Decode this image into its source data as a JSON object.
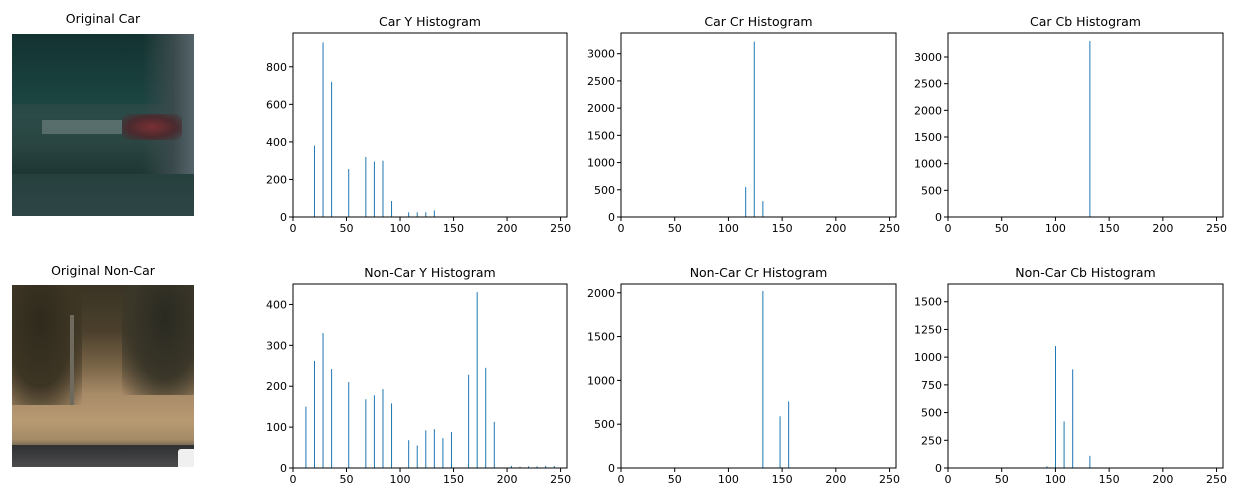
{
  "chart_data": [
    {
      "type": "bar",
      "title": "Car Y Histogram",
      "xlabel": "",
      "ylabel": "",
      "xlim": [
        0,
        256
      ],
      "ylim": [
        0,
        980
      ],
      "xticks": [
        0,
        50,
        100,
        150,
        200,
        250
      ],
      "yticks": [
        0,
        200,
        400,
        600,
        800
      ],
      "bar_width": 0.8,
      "x": [
        20,
        28,
        36,
        52,
        68,
        76,
        84,
        92,
        108,
        116,
        124,
        132
      ],
      "values": [
        380,
        930,
        720,
        255,
        320,
        295,
        300,
        85,
        25,
        25,
        25,
        35
      ]
    },
    {
      "type": "bar",
      "title": "Car Cr Histogram",
      "xlabel": "",
      "ylabel": "",
      "xlim": [
        0,
        256
      ],
      "ylim": [
        0,
        3380
      ],
      "xticks": [
        0,
        50,
        100,
        150,
        200,
        250
      ],
      "yticks": [
        0,
        500,
        1000,
        1500,
        2000,
        2500,
        3000
      ],
      "bar_width": 0.8,
      "x": [
        116,
        124,
        132
      ],
      "values": [
        550,
        3220,
        290
      ]
    },
    {
      "type": "bar",
      "title": "Car Cb Histogram",
      "xlabel": "",
      "ylabel": "",
      "xlim": [
        0,
        256
      ],
      "ylim": [
        0,
        3450
      ],
      "xticks": [
        0,
        50,
        100,
        150,
        200,
        250
      ],
      "yticks": [
        0,
        500,
        1000,
        1500,
        2000,
        2500,
        3000
      ],
      "bar_width": 0.8,
      "x": [
        132
      ],
      "values": [
        3300
      ]
    },
    {
      "type": "bar",
      "title": "Non-Car Y Histogram",
      "xlabel": "",
      "ylabel": "",
      "xlim": [
        0,
        256
      ],
      "ylim": [
        0,
        450
      ],
      "xticks": [
        0,
        50,
        100,
        150,
        200,
        250
      ],
      "yticks": [
        0,
        100,
        200,
        300,
        400
      ],
      "bar_width": 0.8,
      "x": [
        12,
        20,
        28,
        36,
        52,
        68,
        76,
        84,
        92,
        108,
        116,
        124,
        132,
        140,
        148,
        164,
        172,
        180,
        188,
        204,
        212,
        220,
        228,
        236,
        244
      ],
      "values": [
        150,
        262,
        330,
        242,
        210,
        168,
        178,
        193,
        158,
        68,
        55,
        92,
        95,
        73,
        88,
        228,
        430,
        245,
        113,
        5,
        3,
        4,
        4,
        5,
        5
      ]
    },
    {
      "type": "bar",
      "title": "Non-Car Cr Histogram",
      "xlabel": "",
      "ylabel": "",
      "xlim": [
        0,
        256
      ],
      "ylim": [
        0,
        2100
      ],
      "xticks": [
        0,
        50,
        100,
        150,
        200,
        250
      ],
      "yticks": [
        0,
        500,
        1000,
        1500,
        2000
      ],
      "bar_width": 0.8,
      "x": [
        132,
        148,
        156
      ],
      "values": [
        2020,
        590,
        760
      ]
    },
    {
      "type": "bar",
      "title": "Non-Car Cb Histogram",
      "xlabel": "",
      "ylabel": "",
      "xlim": [
        0,
        256
      ],
      "ylim": [
        0,
        1660
      ],
      "xticks": [
        0,
        50,
        100,
        150,
        200,
        250
      ],
      "yticks": [
        0,
        250,
        500,
        750,
        1000,
        1250,
        1500
      ],
      "bar_width": 0.8,
      "x": [
        92,
        100,
        108,
        116,
        132
      ],
      "values": [
        15,
        1100,
        420,
        890,
        110
      ]
    }
  ],
  "images": [
    {
      "title": "Original Car"
    },
    {
      "title": "Original Non-Car"
    }
  ],
  "colors": {
    "bar": "#1f77b4",
    "axis": "#000000"
  }
}
